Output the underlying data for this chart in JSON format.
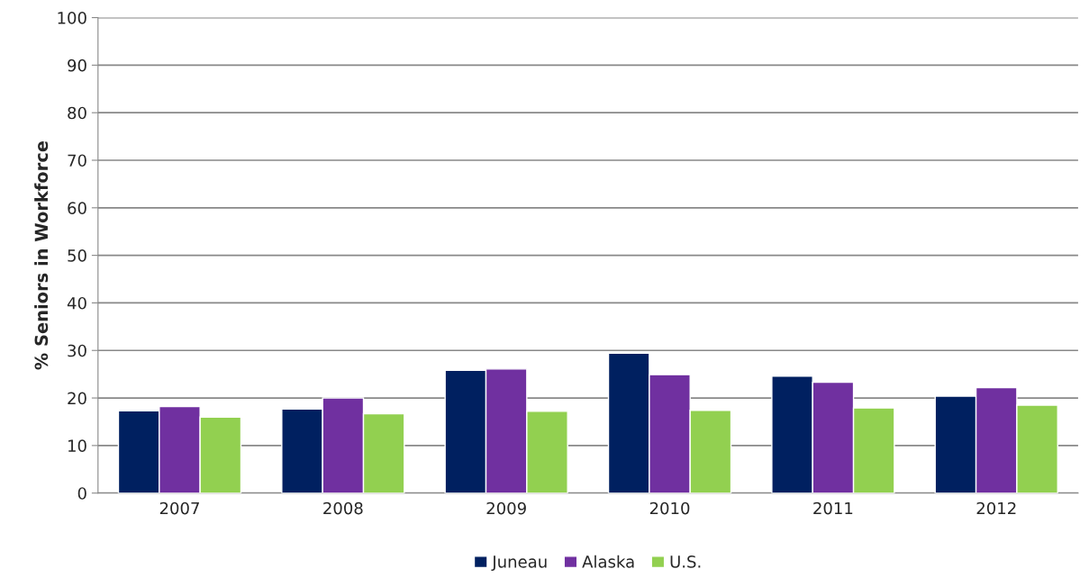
{
  "chart_data": {
    "type": "bar",
    "ylabel": "% Seniors in Workforce",
    "categories": [
      "2007",
      "2008",
      "2009",
      "2010",
      "2011",
      "2012"
    ],
    "series": [
      {
        "name": "Juneau",
        "color": "#002060",
        "values": [
          17.3,
          17.7,
          25.8,
          29.4,
          24.6,
          20.4
        ]
      },
      {
        "name": "Alaska",
        "color": "#7030a0",
        "values": [
          18.2,
          20.0,
          26.1,
          24.9,
          23.3,
          22.2
        ]
      },
      {
        "name": "U.S.",
        "color": "#92d050",
        "values": [
          16.0,
          16.7,
          17.2,
          17.4,
          17.9,
          18.5
        ]
      }
    ],
    "ylim": [
      0,
      100
    ],
    "yticks": [
      0,
      10,
      20,
      30,
      40,
      50,
      60,
      70,
      80,
      90,
      100
    ],
    "grid": "y",
    "legend": "bottom"
  }
}
